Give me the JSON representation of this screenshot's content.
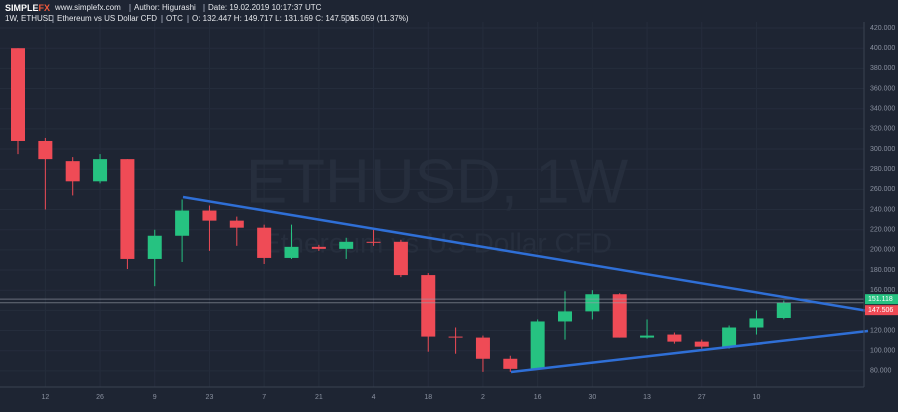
{
  "header": {
    "brand_a": "SIMPLE",
    "brand_b": "FX",
    "site": "www.simplefx.com",
    "author": "Author: Higurashi",
    "date": "Date: 19.02.2019 10:17:37 UTC",
    "symbol": "1W, ETHUSD",
    "description": "Ethereum vs US Dollar CFD",
    "exchange": "OTC",
    "ohlc": "O: 132.447 H: 149.717 L: 131.169 C: 147.506",
    "change": "15.059 (11.37%)"
  },
  "chart_data": {
    "type": "candlestick",
    "watermark": "ETHUSD, 1W",
    "watermark_subtitle": "Ethereum vs US Dollar CFD",
    "categories": [
      null,
      "12",
      null,
      "26",
      null,
      "9",
      null,
      "23",
      null,
      "7",
      null,
      "21",
      null,
      "4",
      null,
      "18",
      null,
      "2",
      null,
      "16",
      null,
      "30",
      null,
      "13",
      null,
      "27",
      null,
      "10",
      null
    ],
    "open": [
      400,
      308,
      288,
      268,
      290,
      191,
      214,
      239,
      229,
      222,
      192,
      203,
      201,
      208,
      208,
      175,
      114,
      113,
      92,
      82,
      129,
      139,
      156,
      113,
      116,
      109,
      104,
      123,
      132.447
    ],
    "high": [
      400,
      311,
      292,
      295,
      290,
      220,
      250,
      244,
      233,
      225,
      225,
      205,
      212,
      221,
      210,
      177,
      123,
      115,
      95,
      131,
      159,
      160,
      157,
      131,
      118,
      111,
      125,
      140,
      149.717
    ],
    "low": [
      295,
      240,
      254,
      266,
      181,
      164,
      188,
      199,
      204,
      186,
      191,
      199,
      191,
      204,
      173,
      99,
      97,
      79,
      79,
      82,
      111,
      131,
      113,
      112,
      107,
      102,
      102,
      116,
      131.169
    ],
    "close": [
      308,
      290,
      268,
      290,
      191,
      214,
      239,
      229,
      222,
      192,
      203,
      201,
      208,
      207,
      175,
      114,
      113,
      92,
      82,
      129,
      139,
      156,
      113,
      115,
      109,
      104,
      123,
      132,
      147.506
    ],
    "up_color": "#26c281",
    "down_color": "#ef4b56",
    "ylim": [
      64,
      426
    ],
    "yticks": [
      {
        "value": 80,
        "label": "80.000"
      },
      {
        "value": 100,
        "label": "100.000"
      },
      {
        "value": 120,
        "label": "120.000"
      },
      {
        "value": 140,
        "label": "140.000"
      },
      {
        "value": 160,
        "label": "160.000"
      },
      {
        "value": 180,
        "label": "180.000"
      },
      {
        "value": 200,
        "label": "200.000"
      },
      {
        "value": 220,
        "label": "220.000"
      },
      {
        "value": 240,
        "label": "240.000"
      },
      {
        "value": 260,
        "label": "260.000"
      },
      {
        "value": 280,
        "label": "280.000"
      },
      {
        "value": 300,
        "label": "300.000"
      },
      {
        "value": 320,
        "label": "320.000"
      },
      {
        "value": 340,
        "label": "340.000"
      },
      {
        "value": 360,
        "label": "360.000"
      },
      {
        "value": 380,
        "label": "380.000"
      },
      {
        "value": 400,
        "label": "400.000"
      },
      {
        "value": 420,
        "label": "420.000"
      }
    ],
    "grid": true,
    "price_lines": [
      {
        "value": 151.118,
        "color": "#26c281"
      },
      {
        "value": 147.506,
        "color": "#ef4b56"
      }
    ]
  }
}
